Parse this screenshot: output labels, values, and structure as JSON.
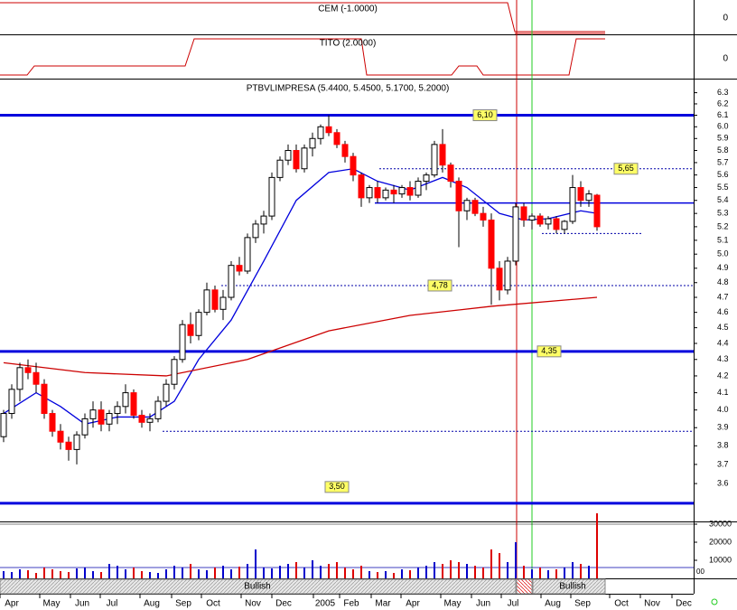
{
  "chart_data": {
    "type": "candlestick",
    "title": "PTBVLIMPRESA (5.4400, 5.4500, 5.1700, 5.2000)",
    "log_scale": true,
    "ylim": [
      3.41,
      6.42
    ],
    "yticks": [
      {
        "value": 3.6,
        "label": "3.6"
      },
      3.7,
      3.8,
      3.9,
      {
        "value": 4,
        "label": "4.0"
      },
      4.1,
      4.2,
      4.3,
      4.4,
      4.5,
      4.6,
      4.7,
      4.8,
      4.9,
      {
        "value": 5,
        "label": "5.0"
      },
      5.1,
      5.2,
      5.3,
      5.4,
      5.5,
      5.6,
      5.7,
      5.8,
      5.9,
      {
        "value": 6,
        "label": "6.0"
      },
      6.1,
      6.2,
      6.3
    ],
    "up_color": "#ffffff",
    "down_color": "#ff0000",
    "candles": [
      [
        3.85,
        4.0,
        3.82,
        3.98
      ],
      [
        3.98,
        4.15,
        3.95,
        4.12
      ],
      [
        4.12,
        4.28,
        4.05,
        4.25
      ],
      [
        4.25,
        4.3,
        4.18,
        4.22
      ],
      [
        4.22,
        4.28,
        4.1,
        4.15
      ],
      [
        4.15,
        4.18,
        3.95,
        3.98
      ],
      [
        3.98,
        4.0,
        3.85,
        3.88
      ],
      [
        3.88,
        3.92,
        3.78,
        3.82
      ],
      [
        3.82,
        3.85,
        3.72,
        3.78
      ],
      [
        3.78,
        3.88,
        3.7,
        3.86
      ],
      [
        3.86,
        3.98,
        3.84,
        3.95
      ],
      [
        3.95,
        4.05,
        3.9,
        4.0
      ],
      [
        4.0,
        4.05,
        3.88,
        3.92
      ],
      [
        3.92,
        4.0,
        3.88,
        3.98
      ],
      [
        3.98,
        4.05,
        3.92,
        4.02
      ],
      [
        4.02,
        4.15,
        3.98,
        4.1
      ],
      [
        4.1,
        4.12,
        3.95,
        3.97
      ],
      [
        3.97,
        4.0,
        3.9,
        3.93
      ],
      [
        3.93,
        3.98,
        3.88,
        3.95
      ],
      [
        3.95,
        4.08,
        3.93,
        4.05
      ],
      [
        4.05,
        4.18,
        4.02,
        4.15
      ],
      [
        4.15,
        4.32,
        4.12,
        4.3
      ],
      [
        4.3,
        4.55,
        4.28,
        4.52
      ],
      [
        4.52,
        4.6,
        4.4,
        4.45
      ],
      [
        4.45,
        4.62,
        4.42,
        4.6
      ],
      [
        4.6,
        4.8,
        4.58,
        4.75
      ],
      [
        4.75,
        4.78,
        4.6,
        4.62
      ],
      [
        4.62,
        4.75,
        4.55,
        4.7
      ],
      [
        4.7,
        4.95,
        4.68,
        4.92
      ],
      [
        4.92,
        4.98,
        4.85,
        4.88
      ],
      [
        4.88,
        5.15,
        4.86,
        5.12
      ],
      [
        5.12,
        5.25,
        5.08,
        5.22
      ],
      [
        5.22,
        5.32,
        5.15,
        5.28
      ],
      [
        5.28,
        5.62,
        5.25,
        5.58
      ],
      [
        5.58,
        5.75,
        5.55,
        5.72
      ],
      [
        5.72,
        5.85,
        5.68,
        5.8
      ],
      [
        5.8,
        5.85,
        5.62,
        5.65
      ],
      [
        5.65,
        5.85,
        5.62,
        5.82
      ],
      [
        5.82,
        5.95,
        5.75,
        5.9
      ],
      [
        5.9,
        6.02,
        5.85,
        6.0
      ],
      [
        6.0,
        6.1,
        5.92,
        5.95
      ],
      [
        5.95,
        5.98,
        5.82,
        5.85
      ],
      [
        5.85,
        5.88,
        5.7,
        5.75
      ],
      [
        5.75,
        5.78,
        5.55,
        5.6
      ],
      [
        5.6,
        5.62,
        5.35,
        5.42
      ],
      [
        5.42,
        5.52,
        5.38,
        5.5
      ],
      [
        5.5,
        5.55,
        5.38,
        5.42
      ],
      [
        5.42,
        5.5,
        5.4,
        5.48
      ],
      [
        5.48,
        5.52,
        5.38,
        5.45
      ],
      [
        5.45,
        5.52,
        5.42,
        5.5
      ],
      [
        5.5,
        5.55,
        5.4,
        5.44
      ],
      [
        5.44,
        5.58,
        5.42,
        5.55
      ],
      [
        5.55,
        5.62,
        5.48,
        5.6
      ],
      [
        5.6,
        5.88,
        5.58,
        5.85
      ],
      [
        5.85,
        5.98,
        5.62,
        5.68
      ],
      [
        5.68,
        5.7,
        5.5,
        5.55
      ],
      [
        5.55,
        5.58,
        5.05,
        5.32
      ],
      [
        5.32,
        5.42,
        5.25,
        5.4
      ],
      [
        5.4,
        5.42,
        5.28,
        5.3
      ],
      [
        5.3,
        5.35,
        5.2,
        5.25
      ],
      [
        5.25,
        5.3,
        4.65,
        4.9
      ],
      [
        4.9,
        4.95,
        4.68,
        4.75
      ],
      [
        4.75,
        4.98,
        4.72,
        4.95
      ],
      [
        4.95,
        5.38,
        4.92,
        5.35
      ],
      [
        5.35,
        5.38,
        5.2,
        5.25
      ],
      [
        5.25,
        5.3,
        5.18,
        5.28
      ],
      [
        5.28,
        5.3,
        5.2,
        5.22
      ],
      [
        5.22,
        5.28,
        5.18,
        5.26
      ],
      [
        5.26,
        5.28,
        5.15,
        5.18
      ],
      [
        5.18,
        5.25,
        5.15,
        5.24
      ],
      [
        5.24,
        5.6,
        5.22,
        5.5
      ],
      [
        5.5,
        5.55,
        5.35,
        5.4
      ],
      [
        5.4,
        5.48,
        5.35,
        5.45
      ],
      [
        5.44,
        5.45,
        5.17,
        5.2
      ]
    ],
    "averages": [
      {
        "color": "#0000dd",
        "index": [
          0,
          4,
          7,
          10,
          14,
          18,
          21,
          24,
          28,
          32,
          36,
          40,
          43,
          46,
          50,
          54,
          57,
          61,
          64,
          67,
          71,
          73
        ],
        "values": [
          3.98,
          4.1,
          4.02,
          3.92,
          3.96,
          3.96,
          4.05,
          4.3,
          4.55,
          4.95,
          5.4,
          5.62,
          5.65,
          5.55,
          5.48,
          5.58,
          5.5,
          5.3,
          5.25,
          5.26,
          5.32,
          5.3
        ]
      },
      {
        "color": "#cc0000",
        "index": [
          0,
          10,
          20,
          30,
          40,
          50,
          60,
          73
        ],
        "values": [
          4.28,
          4.22,
          4.2,
          4.3,
          4.48,
          4.58,
          4.64,
          4.7
        ]
      }
    ],
    "levels": [
      {
        "value": 6.1,
        "label": "6,10",
        "style": "thick"
      },
      {
        "value": 4.35,
        "label": "4,35",
        "style": "thick"
      },
      {
        "value": 3.5,
        "label": "3,50",
        "style": "thick"
      },
      {
        "value": 5.65,
        "label": "5,65",
        "style": "dashed"
      },
      {
        "value": 4.78,
        "label": "4,78",
        "style": "dashed"
      },
      {
        "value": 5.38,
        "style": "thin"
      },
      {
        "value": 3.88,
        "style": "dashed"
      },
      {
        "value": 5.15,
        "style": "dashed"
      }
    ],
    "volume": {
      "ylim": [
        0,
        31000
      ],
      "yticks": [
        30000,
        20000,
        10000
      ],
      "extra_label": "00",
      "values": [
        4000,
        3500,
        5000,
        4500,
        3000,
        6000,
        5000,
        4000,
        3500,
        5500,
        6000,
        4000,
        3500,
        8000,
        7000,
        5000,
        6000,
        4000,
        3500,
        3000,
        5000,
        7000,
        6000,
        8000,
        5000,
        4500,
        6000,
        7000,
        5000,
        6500,
        8000,
        16000,
        6000,
        5500,
        7000,
        8000,
        9000,
        6000,
        10000,
        7000,
        8000,
        9000,
        6000,
        5000,
        7000,
        4000,
        3500,
        4000,
        3000,
        5000,
        4500,
        6000,
        7000,
        9000,
        8000,
        10000,
        9000,
        8000,
        7000,
        6000,
        16000,
        14000,
        9000,
        20000,
        7000,
        5000,
        6000,
        4500,
        5000,
        6000,
        9000,
        8000,
        7000,
        36000
      ]
    },
    "cem_label": "CEM (-1.0000)",
    "cem_tick": "0",
    "tito_label": "TITO (2.0000)",
    "tito_tick": "0",
    "months": [
      "Apr",
      "May",
      "Jun",
      "Jul",
      "Aug",
      "Sep",
      "Oct",
      "Nov",
      "Dec",
      "2005",
      "Feb",
      "Mar",
      "Apr",
      "May",
      "Jun",
      "Jul",
      "Aug",
      "Sep",
      "Oct",
      "Nov",
      "Dec"
    ],
    "bands": [
      {
        "label": "Bullish"
      },
      {
        "label": "Bullish"
      }
    ]
  }
}
